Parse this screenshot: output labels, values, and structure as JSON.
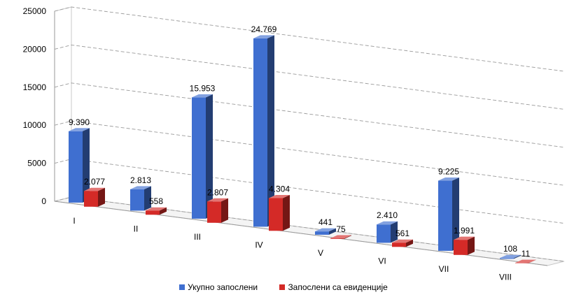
{
  "chart_data": {
    "type": "bar",
    "categories": [
      "I",
      "II",
      "III",
      "IV",
      "V",
      "VI",
      "VII",
      "VIII"
    ],
    "series": [
      {
        "name": "Укупно запослени",
        "color": "#3f6fd0",
        "values": [
          9390,
          2813,
          15953,
          24769,
          441,
          2410,
          9225,
          108
        ],
        "labels": [
          "9.390",
          "2.813",
          "15.953",
          "24.769",
          "441",
          "2.410",
          "9.225",
          "108"
        ]
      },
      {
        "name": "Запослени са евиденције",
        "color": "#d42a27",
        "values": [
          2077,
          558,
          2807,
          4304,
          75,
          561,
          1991,
          11
        ],
        "labels": [
          "2.077",
          "558",
          "2.807",
          "4.304",
          "75",
          "561",
          "1.991",
          "11"
        ]
      }
    ],
    "y_ticks": [
      "0",
      "5000",
      "10000",
      "15000",
      "20000",
      "25000"
    ],
    "ylim": [
      0,
      25000
    ],
    "grid": true,
    "legend_position": "bottom"
  }
}
